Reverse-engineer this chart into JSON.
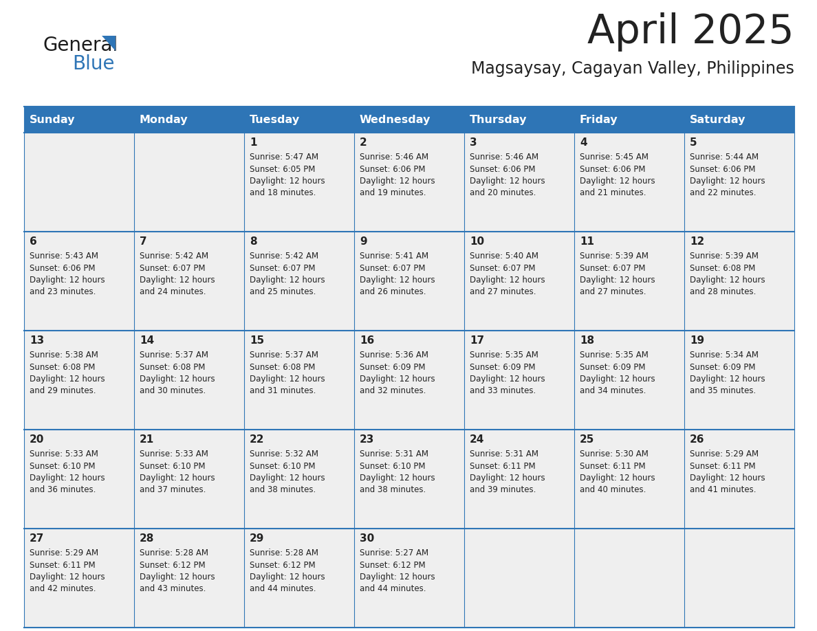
{
  "title": "April 2025",
  "subtitle": "Magsaysay, Cagayan Valley, Philippines",
  "header_bg": "#2e75b6",
  "header_text_color": "#ffffff",
  "cell_bg_light": "#efefef",
  "cell_bg_white": "#ffffff",
  "day_names": [
    "Sunday",
    "Monday",
    "Tuesday",
    "Wednesday",
    "Thursday",
    "Friday",
    "Saturday"
  ],
  "grid_line_color": "#2e75b6",
  "text_color": "#222222",
  "logo_general_color": "#1a1a1a",
  "logo_blue_color": "#2e75b6",
  "days": [
    {
      "day": 1,
      "col": 2,
      "row": 0,
      "sunrise": "5:47 AM",
      "sunset": "6:05 PM",
      "dl_suffix": "18 minutes."
    },
    {
      "day": 2,
      "col": 3,
      "row": 0,
      "sunrise": "5:46 AM",
      "sunset": "6:06 PM",
      "dl_suffix": "19 minutes."
    },
    {
      "day": 3,
      "col": 4,
      "row": 0,
      "sunrise": "5:46 AM",
      "sunset": "6:06 PM",
      "dl_suffix": "20 minutes."
    },
    {
      "day": 4,
      "col": 5,
      "row": 0,
      "sunrise": "5:45 AM",
      "sunset": "6:06 PM",
      "dl_suffix": "21 minutes."
    },
    {
      "day": 5,
      "col": 6,
      "row": 0,
      "sunrise": "5:44 AM",
      "sunset": "6:06 PM",
      "dl_suffix": "22 minutes."
    },
    {
      "day": 6,
      "col": 0,
      "row": 1,
      "sunrise": "5:43 AM",
      "sunset": "6:06 PM",
      "dl_suffix": "23 minutes."
    },
    {
      "day": 7,
      "col": 1,
      "row": 1,
      "sunrise": "5:42 AM",
      "sunset": "6:07 PM",
      "dl_suffix": "24 minutes."
    },
    {
      "day": 8,
      "col": 2,
      "row": 1,
      "sunrise": "5:42 AM",
      "sunset": "6:07 PM",
      "dl_suffix": "25 minutes."
    },
    {
      "day": 9,
      "col": 3,
      "row": 1,
      "sunrise": "5:41 AM",
      "sunset": "6:07 PM",
      "dl_suffix": "26 minutes."
    },
    {
      "day": 10,
      "col": 4,
      "row": 1,
      "sunrise": "5:40 AM",
      "sunset": "6:07 PM",
      "dl_suffix": "27 minutes."
    },
    {
      "day": 11,
      "col": 5,
      "row": 1,
      "sunrise": "5:39 AM",
      "sunset": "6:07 PM",
      "dl_suffix": "27 minutes."
    },
    {
      "day": 12,
      "col": 6,
      "row": 1,
      "sunrise": "5:39 AM",
      "sunset": "6:08 PM",
      "dl_suffix": "28 minutes."
    },
    {
      "day": 13,
      "col": 0,
      "row": 2,
      "sunrise": "5:38 AM",
      "sunset": "6:08 PM",
      "dl_suffix": "29 minutes."
    },
    {
      "day": 14,
      "col": 1,
      "row": 2,
      "sunrise": "5:37 AM",
      "sunset": "6:08 PM",
      "dl_suffix": "30 minutes."
    },
    {
      "day": 15,
      "col": 2,
      "row": 2,
      "sunrise": "5:37 AM",
      "sunset": "6:08 PM",
      "dl_suffix": "31 minutes."
    },
    {
      "day": 16,
      "col": 3,
      "row": 2,
      "sunrise": "5:36 AM",
      "sunset": "6:09 PM",
      "dl_suffix": "32 minutes."
    },
    {
      "day": 17,
      "col": 4,
      "row": 2,
      "sunrise": "5:35 AM",
      "sunset": "6:09 PM",
      "dl_suffix": "33 minutes."
    },
    {
      "day": 18,
      "col": 5,
      "row": 2,
      "sunrise": "5:35 AM",
      "sunset": "6:09 PM",
      "dl_suffix": "34 minutes."
    },
    {
      "day": 19,
      "col": 6,
      "row": 2,
      "sunrise": "5:34 AM",
      "sunset": "6:09 PM",
      "dl_suffix": "35 minutes."
    },
    {
      "day": 20,
      "col": 0,
      "row": 3,
      "sunrise": "5:33 AM",
      "sunset": "6:10 PM",
      "dl_suffix": "36 minutes."
    },
    {
      "day": 21,
      "col": 1,
      "row": 3,
      "sunrise": "5:33 AM",
      "sunset": "6:10 PM",
      "dl_suffix": "37 minutes."
    },
    {
      "day": 22,
      "col": 2,
      "row": 3,
      "sunrise": "5:32 AM",
      "sunset": "6:10 PM",
      "dl_suffix": "38 minutes."
    },
    {
      "day": 23,
      "col": 3,
      "row": 3,
      "sunrise": "5:31 AM",
      "sunset": "6:10 PM",
      "dl_suffix": "38 minutes."
    },
    {
      "day": 24,
      "col": 4,
      "row": 3,
      "sunrise": "5:31 AM",
      "sunset": "6:11 PM",
      "dl_suffix": "39 minutes."
    },
    {
      "day": 25,
      "col": 5,
      "row": 3,
      "sunrise": "5:30 AM",
      "sunset": "6:11 PM",
      "dl_suffix": "40 minutes."
    },
    {
      "day": 26,
      "col": 6,
      "row": 3,
      "sunrise": "5:29 AM",
      "sunset": "6:11 PM",
      "dl_suffix": "41 minutes."
    },
    {
      "day": 27,
      "col": 0,
      "row": 4,
      "sunrise": "5:29 AM",
      "sunset": "6:11 PM",
      "dl_suffix": "42 minutes."
    },
    {
      "day": 28,
      "col": 1,
      "row": 4,
      "sunrise": "5:28 AM",
      "sunset": "6:12 PM",
      "dl_suffix": "43 minutes."
    },
    {
      "day": 29,
      "col": 2,
      "row": 4,
      "sunrise": "5:28 AM",
      "sunset": "6:12 PM",
      "dl_suffix": "44 minutes."
    },
    {
      "day": 30,
      "col": 3,
      "row": 4,
      "sunrise": "5:27 AM",
      "sunset": "6:12 PM",
      "dl_suffix": "44 minutes."
    }
  ]
}
